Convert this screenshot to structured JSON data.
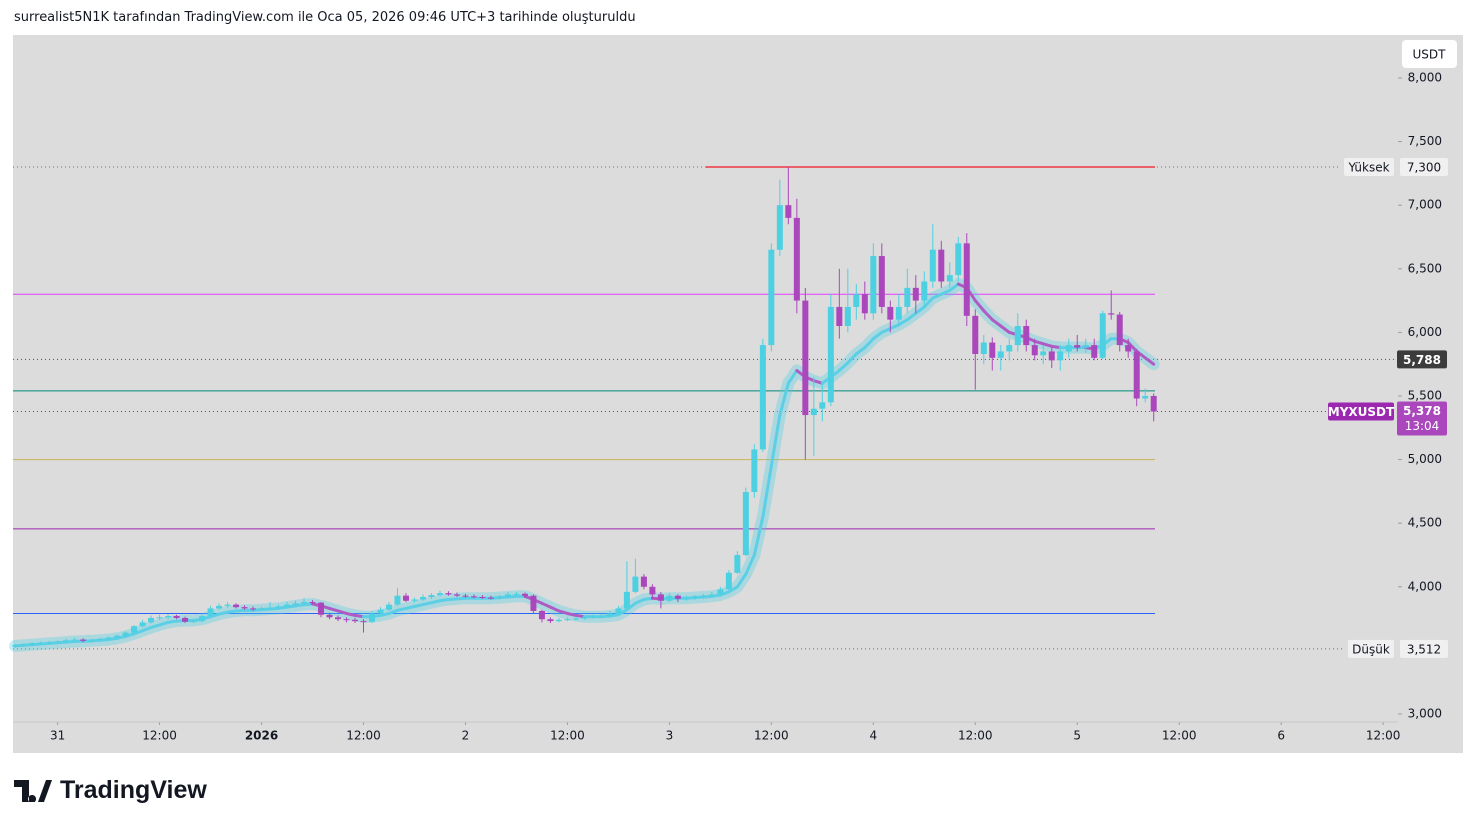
{
  "header": "surrealist5N1K tarafından TradingView.com ile Oca 05, 2026 09:46 UTC+3 tarihinde oluşturuldu",
  "logo": "TradingView",
  "chart_data": {
    "type": "candlestick",
    "currency": "USDT",
    "up_color": "#4dd0e1",
    "down_color": "#ab47bc",
    "ylim": [
      2937,
      8322
    ],
    "yticks": [
      {
        "value": 3000,
        "label": "3,000"
      },
      {
        "value": 4000,
        "label": "4,000"
      },
      {
        "value": 4500,
        "label": "4,500"
      },
      {
        "value": 5000,
        "label": "5,000"
      },
      {
        "value": 5500,
        "label": "5,500"
      },
      {
        "value": 6000,
        "label": "6,000"
      },
      {
        "value": 6500,
        "label": "6,500"
      },
      {
        "value": 7000,
        "label": "7,000"
      },
      {
        "value": 7500,
        "label": "7,500"
      },
      {
        "value": 8000,
        "label": "8,000"
      }
    ],
    "xlim": [
      -0.25,
      162.75
    ],
    "xticks": [
      {
        "value": 5,
        "label": "31"
      },
      {
        "value": 17,
        "label": "12:00"
      },
      {
        "value": 29,
        "label": "2026"
      },
      {
        "value": 41,
        "label": "12:00"
      },
      {
        "value": 53,
        "label": "2"
      },
      {
        "value": 65,
        "label": "12:00"
      },
      {
        "value": 77,
        "label": "3"
      },
      {
        "value": 89,
        "label": "12:00"
      },
      {
        "value": 101,
        "label": "4"
      },
      {
        "value": 113,
        "label": "12:00"
      },
      {
        "value": 125,
        "label": "5"
      },
      {
        "value": 137,
        "label": "12:00"
      },
      {
        "value": 149,
        "label": "6"
      },
      {
        "value": 161,
        "label": "12:00"
      }
    ],
    "candles": [
      [
        3530,
        3550,
        3520,
        3540
      ],
      [
        3540,
        3555,
        3530,
        3545
      ],
      [
        3545,
        3565,
        3535,
        3555
      ],
      [
        3555,
        3570,
        3545,
        3560
      ],
      [
        3560,
        3575,
        3550,
        3565
      ],
      [
        3565,
        3580,
        3555,
        3570
      ],
      [
        3570,
        3590,
        3560,
        3580
      ],
      [
        3580,
        3600,
        3570,
        3585
      ],
      [
        3585,
        3595,
        3565,
        3575
      ],
      [
        3575,
        3590,
        3565,
        3580
      ],
      [
        3580,
        3600,
        3570,
        3590
      ],
      [
        3590,
        3610,
        3580,
        3600
      ],
      [
        3600,
        3625,
        3590,
        3615
      ],
      [
        3615,
        3650,
        3605,
        3640
      ],
      [
        3640,
        3700,
        3630,
        3690
      ],
      [
        3690,
        3740,
        3680,
        3720
      ],
      [
        3720,
        3775,
        3710,
        3755
      ],
      [
        3755,
        3780,
        3740,
        3760
      ],
      [
        3760,
        3785,
        3745,
        3770
      ],
      [
        3770,
        3780,
        3745,
        3755
      ],
      [
        3755,
        3765,
        3715,
        3725
      ],
      [
        3725,
        3745,
        3715,
        3730
      ],
      [
        3730,
        3785,
        3720,
        3770
      ],
      [
        3770,
        3850,
        3760,
        3830
      ],
      [
        3830,
        3870,
        3820,
        3850
      ],
      [
        3850,
        3880,
        3835,
        3860
      ],
      [
        3860,
        3870,
        3830,
        3840
      ],
      [
        3840,
        3855,
        3820,
        3830
      ],
      [
        3830,
        3845,
        3810,
        3825
      ],
      [
        3825,
        3845,
        3815,
        3830
      ],
      [
        3830,
        3880,
        3820,
        3835
      ],
      [
        3835,
        3860,
        3825,
        3845
      ],
      [
        3845,
        3880,
        3835,
        3860
      ],
      [
        3860,
        3890,
        3850,
        3870
      ],
      [
        3870,
        3910,
        3860,
        3880
      ],
      [
        3880,
        3895,
        3860,
        3875
      ],
      [
        3875,
        3880,
        3760,
        3780
      ],
      [
        3780,
        3795,
        3745,
        3760
      ],
      [
        3760,
        3775,
        3730,
        3745
      ],
      [
        3745,
        3760,
        3720,
        3740
      ],
      [
        3740,
        3755,
        3715,
        3730
      ],
      [
        3730,
        3745,
        3640,
        3725
      ],
      [
        3725,
        3810,
        3715,
        3790
      ],
      [
        3790,
        3840,
        3780,
        3820
      ],
      [
        3820,
        3880,
        3810,
        3860
      ],
      [
        3860,
        3990,
        3850,
        3930
      ],
      [
        3930,
        3950,
        3880,
        3890
      ],
      [
        3890,
        3915,
        3875,
        3900
      ],
      [
        3900,
        3940,
        3890,
        3920
      ],
      [
        3920,
        3950,
        3905,
        3935
      ],
      [
        3935,
        3970,
        3925,
        3950
      ],
      [
        3950,
        3965,
        3930,
        3940
      ],
      [
        3940,
        3955,
        3920,
        3930
      ],
      [
        3930,
        3945,
        3915,
        3925
      ],
      [
        3925,
        3940,
        3910,
        3920
      ],
      [
        3920,
        3935,
        3905,
        3915
      ],
      [
        3915,
        3930,
        3900,
        3910
      ],
      [
        3910,
        3935,
        3900,
        3920
      ],
      [
        3920,
        3960,
        3910,
        3940
      ],
      [
        3940,
        3960,
        3930,
        3945
      ],
      [
        3945,
        3955,
        3915,
        3930
      ],
      [
        3930,
        3940,
        3795,
        3810
      ],
      [
        3810,
        3820,
        3720,
        3745
      ],
      [
        3745,
        3760,
        3715,
        3730
      ],
      [
        3730,
        3755,
        3720,
        3740
      ],
      [
        3740,
        3760,
        3730,
        3745
      ],
      [
        3745,
        3765,
        3735,
        3750
      ],
      [
        3750,
        3775,
        3740,
        3760
      ],
      [
        3760,
        3780,
        3750,
        3765
      ],
      [
        3765,
        3785,
        3755,
        3770
      ],
      [
        3770,
        3810,
        3760,
        3790
      ],
      [
        3790,
        3850,
        3780,
        3830
      ],
      [
        3830,
        4200,
        3820,
        3960
      ],
      [
        3960,
        4220,
        3950,
        4080
      ],
      [
        4080,
        4100,
        3980,
        4000
      ],
      [
        4000,
        4020,
        3900,
        3940
      ],
      [
        3940,
        3960,
        3830,
        3890
      ],
      [
        3890,
        3950,
        3880,
        3930
      ],
      [
        3930,
        3940,
        3880,
        3905
      ],
      [
        3905,
        3930,
        3890,
        3910
      ],
      [
        3910,
        3935,
        3900,
        3920
      ],
      [
        3920,
        3945,
        3905,
        3930
      ],
      [
        3930,
        3960,
        3915,
        3940
      ],
      [
        3940,
        4000,
        3930,
        3980
      ],
      [
        3980,
        4130,
        3970,
        4110
      ],
      [
        4110,
        4280,
        4100,
        4250
      ],
      [
        4250,
        4780,
        4240,
        4745
      ],
      [
        4745,
        5120,
        4700,
        5080
      ],
      [
        5080,
        5950,
        5060,
        5900
      ],
      [
        5900,
        6700,
        5850,
        6650
      ],
      [
        6650,
        7200,
        6600,
        7000
      ],
      [
        7000,
        7300,
        6850,
        6900
      ],
      [
        6900,
        7050,
        6150,
        6250
      ],
      [
        6250,
        6350,
        5000,
        5350
      ],
      [
        5350,
        5650,
        5030,
        5400
      ],
      [
        5400,
        5600,
        5300,
        5450
      ],
      [
        5450,
        6300,
        5420,
        6200
      ],
      [
        6200,
        6500,
        5950,
        6050
      ],
      [
        6050,
        6500,
        6000,
        6200
      ],
      [
        6200,
        6380,
        6100,
        6300
      ],
      [
        6300,
        6400,
        6100,
        6150
      ],
      [
        6150,
        6700,
        6100,
        6600
      ],
      [
        6600,
        6700,
        6150,
        6200
      ],
      [
        6200,
        6250,
        6000,
        6100
      ],
      [
        6100,
        6300,
        6050,
        6200
      ],
      [
        6200,
        6500,
        6150,
        6350
      ],
      [
        6350,
        6450,
        6150,
        6250
      ],
      [
        6250,
        6480,
        6200,
        6400
      ],
      [
        6400,
        6850,
        6350,
        6650
      ],
      [
        6650,
        6720,
        6350,
        6400
      ],
      [
        6400,
        6550,
        6350,
        6450
      ],
      [
        6450,
        6750,
        6400,
        6700
      ],
      [
        6700,
        6780,
        6050,
        6130
      ],
      [
        6130,
        6180,
        5550,
        5830
      ],
      [
        5830,
        5980,
        5750,
        5920
      ],
      [
        5920,
        5960,
        5700,
        5800
      ],
      [
        5800,
        5900,
        5700,
        5850
      ],
      [
        5850,
        5950,
        5780,
        5900
      ],
      [
        5900,
        6150,
        5850,
        6050
      ],
      [
        6050,
        6100,
        5850,
        5900
      ],
      [
        5900,
        5950,
        5780,
        5820
      ],
      [
        5820,
        5900,
        5750,
        5850
      ],
      [
        5850,
        5880,
        5720,
        5780
      ],
      [
        5780,
        5900,
        5700,
        5850
      ],
      [
        5850,
        5950,
        5800,
        5900
      ],
      [
        5900,
        5980,
        5850,
        5880
      ],
      [
        5880,
        5950,
        5840,
        5900
      ],
      [
        5900,
        5950,
        5780,
        5800
      ],
      [
        5800,
        6170,
        5790,
        6150
      ],
      [
        6150,
        6330,
        6100,
        6140
      ],
      [
        6140,
        6160,
        5850,
        5900
      ],
      [
        5900,
        5950,
        5800,
        5850
      ],
      [
        5850,
        5870,
        5420,
        5480
      ],
      [
        5480,
        5560,
        5450,
        5500
      ],
      [
        5500,
        5520,
        5300,
        5378
      ]
    ],
    "ma": [
      3535,
      3540,
      3545,
      3550,
      3555,
      3560,
      3565,
      3570,
      3572,
      3575,
      3580,
      3585,
      3595,
      3610,
      3630,
      3655,
      3680,
      3700,
      3720,
      3730,
      3735,
      3735,
      3745,
      3765,
      3785,
      3800,
      3810,
      3815,
      3815,
      3820,
      3825,
      3830,
      3840,
      3850,
      3860,
      3865,
      3850,
      3830,
      3810,
      3790,
      3775,
      3765,
      3765,
      3775,
      3790,
      3815,
      3830,
      3845,
      3860,
      3875,
      3890,
      3900,
      3905,
      3910,
      3910,
      3910,
      3910,
      3915,
      3920,
      3925,
      3925,
      3900,
      3870,
      3840,
      3810,
      3790,
      3775,
      3765,
      3765,
      3765,
      3770,
      3780,
      3820,
      3870,
      3900,
      3910,
      3905,
      3910,
      3910,
      3910,
      3915,
      3920,
      3925,
      3935,
      3960,
      4000,
      4100,
      4250,
      4550,
      4950,
      5350,
      5600,
      5700,
      5650,
      5620,
      5600,
      5650,
      5700,
      5760,
      5830,
      5880,
      5950,
      6000,
      6030,
      6060,
      6100,
      6150,
      6200,
      6270,
      6300,
      6330,
      6380,
      6350,
      6250,
      6170,
      6100,
      6050,
      6000,
      5980,
      5960,
      5930,
      5910,
      5890,
      5880,
      5880,
      5880,
      5880,
      5870,
      5900,
      5950,
      5950,
      5920,
      5850,
      5800,
      5750
    ],
    "levels": [
      {
        "value": 7300,
        "color": "#f23645"
      },
      {
        "value": 6300,
        "color": "#e040fb"
      },
      {
        "value": 5540,
        "color": "#00897b"
      },
      {
        "value": 5000,
        "color": "#c9b458"
      },
      {
        "value": 4455,
        "color": "#9c27b0"
      },
      {
        "value": 3790,
        "color": "#2962ff"
      }
    ],
    "high": {
      "text": "Yüksek",
      "value": 7300,
      "label": "7,300"
    },
    "low": {
      "text": "Düşük",
      "value": 3512,
      "label": "3,512"
    },
    "marker": {
      "value": 5788,
      "label": "5,788"
    },
    "last": {
      "symbol": "MYXUSDT",
      "value": 5378,
      "label": "5,378",
      "countdown": "13:04"
    }
  }
}
